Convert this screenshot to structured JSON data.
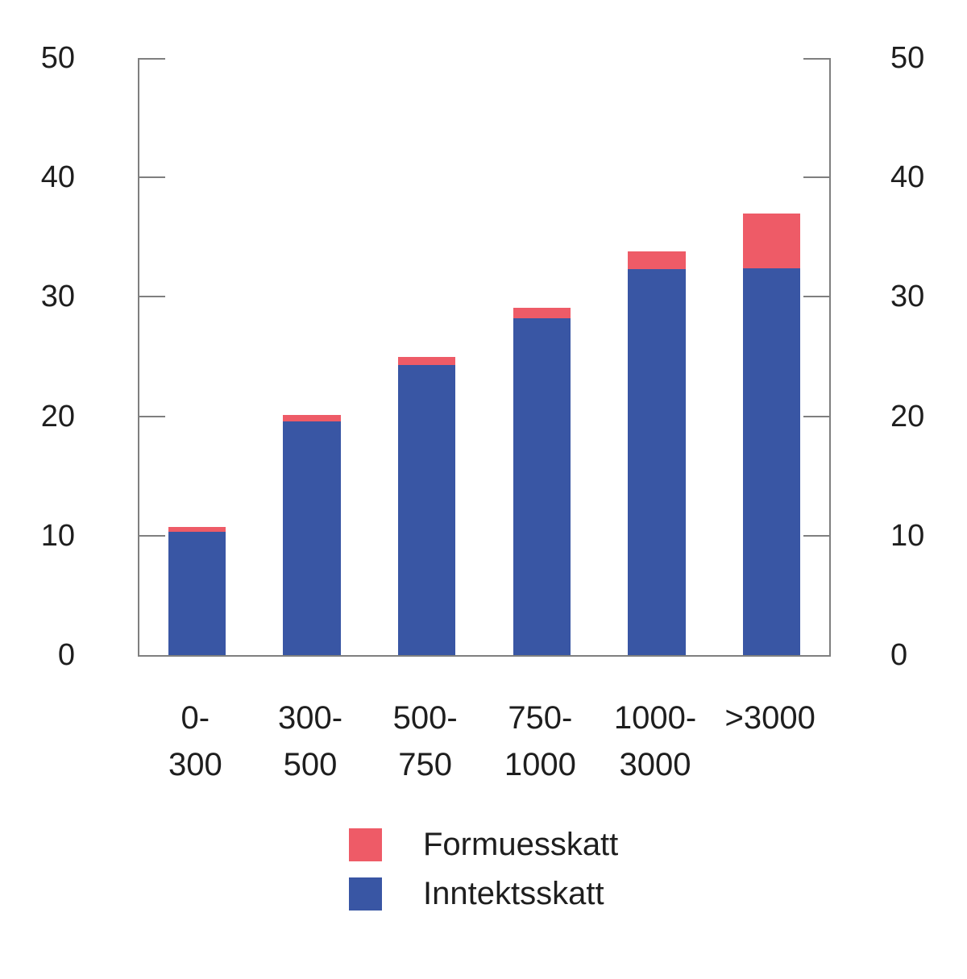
{
  "chart_data": {
    "type": "bar",
    "stacked": true,
    "orientation": "vertical",
    "categories": [
      "0-\n300",
      "300-\n500",
      "500-\n750",
      "750-\n1000",
      "1000-\n3000",
      ">3000"
    ],
    "series": [
      {
        "name": "Inntektsskatt",
        "color": "#3956a4",
        "values": [
          10.3,
          19.6,
          24.3,
          28.2,
          32.3,
          32.4
        ]
      },
      {
        "name": "Formuesskatt",
        "color": "#ee5b67",
        "values": [
          0.4,
          0.5,
          0.7,
          0.9,
          1.5,
          4.6
        ]
      }
    ],
    "ylim": [
      0,
      50
    ],
    "yticks": [
      0,
      10,
      20,
      30,
      40,
      50
    ],
    "y_axis_sides": [
      "left",
      "right"
    ],
    "grid": false,
    "legend_position": "bottom",
    "legend_order": [
      "Formuesskatt",
      "Inntektsskatt"
    ],
    "axis_color": "#7f7f7f",
    "text_color": "#1e1e1e",
    "title": "",
    "xlabel": "",
    "ylabel": ""
  },
  "legend": {
    "items": [
      {
        "label": "Formuesskatt",
        "color": "#ee5b67"
      },
      {
        "label": "Inntektsskatt",
        "color": "#3956a4"
      }
    ]
  }
}
